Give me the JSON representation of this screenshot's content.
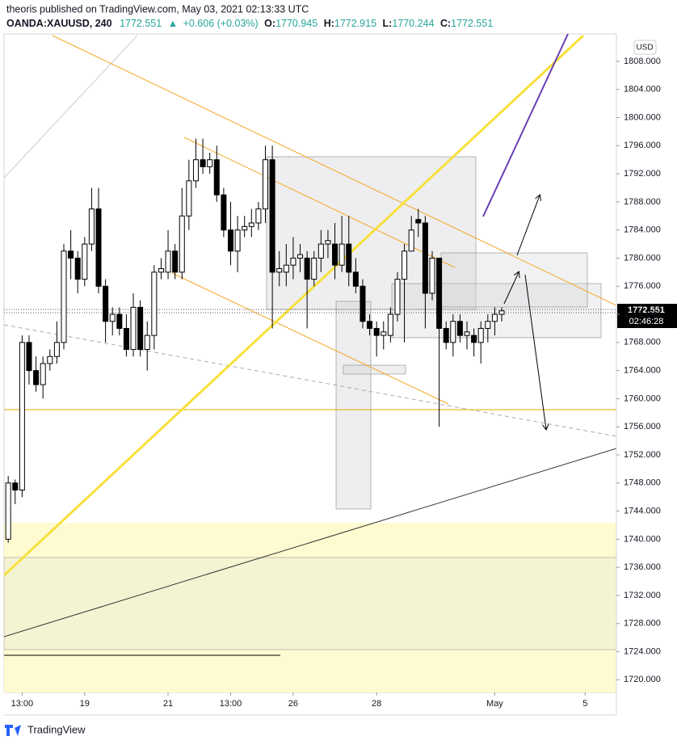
{
  "header": {
    "line1": "theoris published on TradingView.com, May 03, 2021 02:13:33 UTC",
    "symbol": "OANDA:XAUUSD, 240",
    "last": "1772.551",
    "arrow": "▲",
    "change": "+0.606 (+0.03%)",
    "o_label": "O:",
    "o": "1770.945",
    "h_label": "H:",
    "h": "1772.915",
    "l_label": "L:",
    "l": "1770.244",
    "c_label": "C:",
    "c": "1772.551"
  },
  "chart_data": {
    "type": "candlestick",
    "x": [
      0,
      1,
      2,
      3,
      4,
      5,
      6,
      7,
      8,
      9,
      10,
      11,
      12,
      13,
      14,
      15,
      16,
      17,
      18,
      19,
      20,
      21,
      22,
      23,
      24,
      25,
      26,
      27,
      28,
      29,
      30,
      31,
      32,
      33,
      34,
      35,
      36,
      37,
      38,
      39,
      40,
      41,
      42,
      43,
      44,
      45,
      46,
      47,
      48,
      49,
      50,
      51,
      52,
      53,
      54,
      55,
      56,
      57,
      58,
      59,
      60,
      61,
      62,
      63,
      64,
      65,
      66,
      67,
      68,
      69,
      70,
      71
    ],
    "open": [
      1740,
      1748,
      1747,
      1768,
      1764,
      1762,
      1765,
      1766,
      1768,
      1781,
      1780,
      1777,
      1782,
      1787,
      1776,
      1771,
      1772,
      1770,
      1767,
      1773,
      1767,
      1769,
      1778,
      1778,
      1781,
      1778,
      1786,
      1791,
      1794,
      1793,
      1794,
      1789,
      1784,
      1781,
      1784,
      1784.5,
      1785,
      1787,
      1794,
      1778,
      1778,
      1779,
      1780,
      1780,
      1777,
      1780,
      1782,
      1782,
      1779,
      1782,
      1778,
      1776,
      1771,
      1770,
      1769,
      1769,
      1772,
      1777,
      1781,
      1785.5,
      1785,
      1775,
      1780,
      1770,
      1768,
      1771,
      1769,
      1769,
      1768,
      1770,
      1771,
      1772
    ],
    "high": [
      1749,
      1748.5,
      1769,
      1769,
      1766,
      1766,
      1767,
      1771,
      1782,
      1784,
      1781,
      1783,
      1790,
      1790,
      1777,
      1773,
      1773,
      1772,
      1775,
      1774,
      1771,
      1779,
      1780,
      1784,
      1782,
      1790,
      1794,
      1797,
      1797,
      1795,
      1796,
      1790,
      1788,
      1786,
      1786,
      1787,
      1788,
      1796,
      1796,
      1781,
      1782,
      1783,
      1782,
      1781,
      1781,
      1784,
      1784,
      1785,
      1786,
      1786,
      1780,
      1777,
      1772,
      1771,
      1771,
      1773,
      1778,
      1782,
      1786,
      1787,
      1786,
      1781,
      1780,
      1771,
      1772,
      1772,
      1771,
      1770,
      1771,
      1772,
      1773,
      1773
    ],
    "low": [
      1739.5,
      1745,
      1746,
      1762,
      1761,
      1760,
      1764,
      1765,
      1767,
      1777,
      1775,
      1776,
      1781,
      1775,
      1768,
      1769,
      1769,
      1766,
      1766,
      1766,
      1764,
      1767,
      1777,
      1777,
      1777,
      1777,
      1784,
      1790,
      1792,
      1792,
      1788,
      1783,
      1779,
      1778,
      1783,
      1783,
      1784,
      1785,
      1770,
      1776,
      1776,
      1777,
      1778,
      1770,
      1776,
      1778,
      1780,
      1777,
      1778,
      1776,
      1775,
      1770,
      1769,
      1766,
      1767,
      1768,
      1771,
      1768,
      1781,
      1783,
      1770,
      1774,
      1756,
      1767,
      1766,
      1768,
      1767,
      1766,
      1765,
      1768,
      1769,
      1771
    ],
    "close": [
      1748,
      1747,
      1768,
      1764,
      1762,
      1765,
      1766,
      1768,
      1781,
      1780,
      1777,
      1782,
      1787,
      1776,
      1771,
      1772,
      1770,
      1767,
      1773,
      1767,
      1769,
      1778,
      1778.5,
      1781,
      1778,
      1786,
      1791,
      1794,
      1793,
      1794,
      1789,
      1784,
      1781,
      1784,
      1784.5,
      1785,
      1787,
      1794,
      1778,
      1778.5,
      1779,
      1780,
      1780.5,
      1777,
      1780,
      1782,
      1782.5,
      1779,
      1782,
      1778,
      1776,
      1771,
      1770,
      1769,
      1769.5,
      1772,
      1777,
      1781,
      1784,
      1785,
      1775,
      1780,
      1770,
      1768,
      1771,
      1769,
      1769.5,
      1768,
      1770,
      1771,
      1772,
      1772.5
    ],
    "xlim": [
      -0.6,
      87.5
    ],
    "xticks": [
      {
        "value": 2,
        "label": "13:00"
      },
      {
        "value": 11,
        "label": "19"
      },
      {
        "value": 23,
        "label": "21"
      },
      {
        "value": 32,
        "label": "13:00"
      },
      {
        "value": 41,
        "label": "26"
      },
      {
        "value": 53,
        "label": "28"
      },
      {
        "value": 70,
        "label": "May"
      },
      {
        "value": 83,
        "label": "5"
      }
    ],
    "ylim": [
      1718.2,
      1811.9
    ],
    "yticks": [
      {
        "value": 1720,
        "label": "1720.000"
      },
      {
        "value": 1724,
        "label": "1724.000"
      },
      {
        "value": 1728,
        "label": "1728.000"
      },
      {
        "value": 1732,
        "label": "1732.000"
      },
      {
        "value": 1736,
        "label": "1736.000"
      },
      {
        "value": 1740,
        "label": "1740.000"
      },
      {
        "value": 1744,
        "label": "1744.000"
      },
      {
        "value": 1748,
        "label": "1748.000"
      },
      {
        "value": 1752,
        "label": "1752.000"
      },
      {
        "value": 1756,
        "label": "1756.000"
      },
      {
        "value": 1760,
        "label": "1760.000"
      },
      {
        "value": 1764,
        "label": "1764.000"
      },
      {
        "value": 1768,
        "label": "1768.000"
      },
      {
        "value": 1772,
        "label": "1772.000"
      },
      {
        "value": 1776,
        "label": "1776.000"
      },
      {
        "value": 1780,
        "label": "1780.000"
      },
      {
        "value": 1784,
        "label": "1784.000"
      },
      {
        "value": 1788,
        "label": "1788.000"
      },
      {
        "value": 1792,
        "label": "1792.000"
      },
      {
        "value": 1796,
        "label": "1796.000"
      },
      {
        "value": 1800,
        "label": "1800.000"
      },
      {
        "value": 1804,
        "label": "1804.000"
      },
      {
        "value": 1808,
        "label": "1808.000"
      }
    ],
    "currency": "USD",
    "price_label": "1772.551",
    "countdown": "02:46:28",
    "up_color": "#ffffff",
    "down_color": "#000000"
  },
  "footer": {
    "brand": "TradingView"
  }
}
